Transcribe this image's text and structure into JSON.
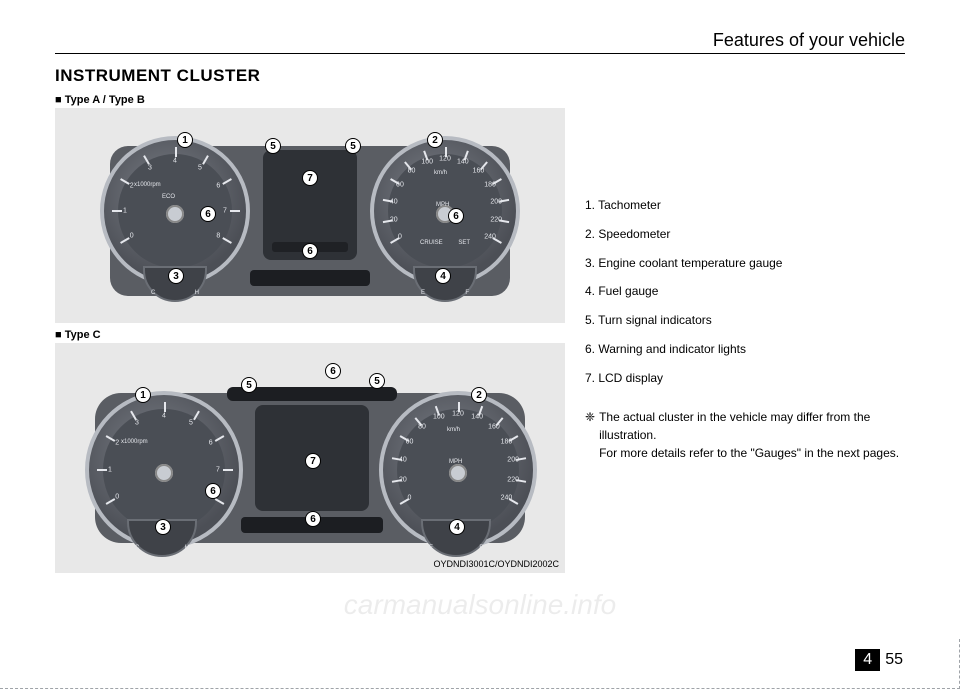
{
  "header": {
    "section_title": "Features of your vehicle"
  },
  "heading": "INSTRUMENT CLUSTER",
  "figures": {
    "ab": {
      "label": "■ Type A / Type B"
    },
    "c": {
      "label": "■ Type C"
    }
  },
  "image_code": "OYDNDI3001C/OYDNDI2002C",
  "legend": [
    "1. Tachometer",
    "2. Speedometer",
    "3. Engine coolant temperature gauge",
    "4. Fuel gauge",
    "5. Turn signal indicators",
    "6. Warning and indicator lights",
    "7. LCD display"
  ],
  "note": {
    "symbol": "❈",
    "text": "The actual cluster in the vehicle may differ from the illustration.\nFor more details refer to the \"Gauges\" in the next pages."
  },
  "tachometer": {
    "labels": [
      "0",
      "1",
      "2",
      "3",
      "4",
      "5",
      "6",
      "7",
      "8"
    ],
    "unit": "x1000rpm",
    "eco_label": "ECO"
  },
  "speedometer": {
    "labels_kmh": [
      "0",
      "20",
      "40",
      "60",
      "80",
      "100",
      "120",
      "140",
      "160",
      "180",
      "200",
      "220",
      "240"
    ],
    "unit_top": "km/h",
    "unit_mid": "MPH",
    "cruise": "CRUISE",
    "set": "SET"
  },
  "temp_gauge": {
    "left": "C",
    "right": "H"
  },
  "fuel_gauge": {
    "left": "E",
    "right": "F"
  },
  "callout_labels": {
    "n1": "1",
    "n2": "2",
    "n3": "3",
    "n4": "4",
    "n5": "5",
    "n6": "6",
    "n7": "7"
  },
  "colors": {
    "page_bg": "#ffffff",
    "figure_bg": "#e8e8e8",
    "cluster_body": "#5a5d63",
    "gauge_rim": "#b7bbc2",
    "gauge_face": "#4a4e55",
    "lcd": "#2e3136",
    "tick": "#e5e7ec"
  },
  "footer": {
    "chapter": "4",
    "page": "55"
  },
  "watermark": "carmanualsonline.info"
}
